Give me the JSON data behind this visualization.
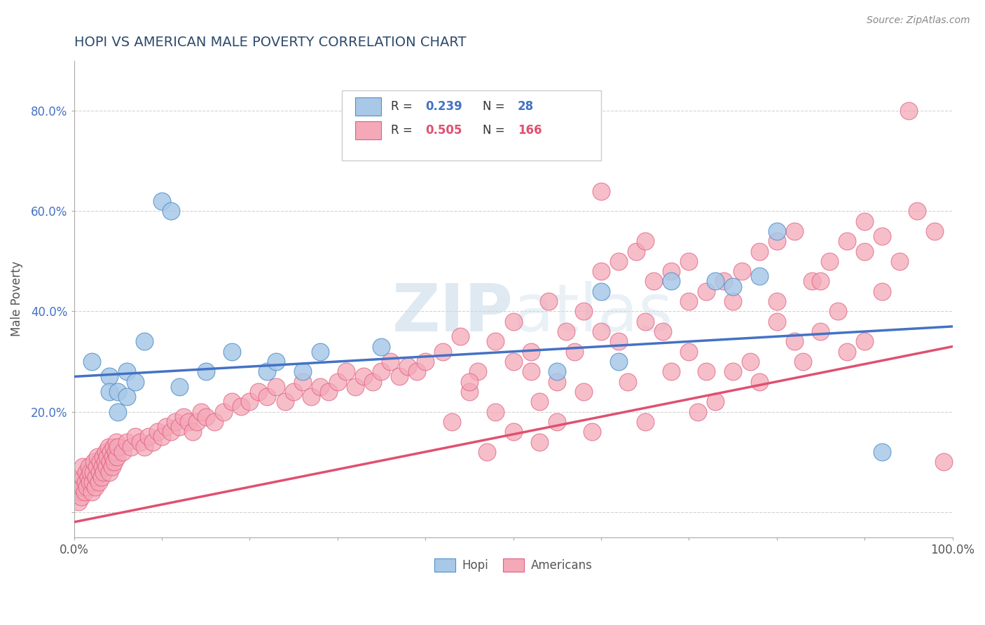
{
  "title": "HOPI VS AMERICAN MALE POVERTY CORRELATION CHART",
  "source": "Source: ZipAtlas.com",
  "ylabel": "Male Poverty",
  "xlim": [
    0.0,
    1.0
  ],
  "ylim": [
    -0.05,
    0.9
  ],
  "hopi_R": 0.239,
  "hopi_N": 28,
  "americans_R": 0.505,
  "americans_N": 166,
  "hopi_color": "#a8c8e8",
  "americans_color": "#f4a8b8",
  "hopi_edge_color": "#5090c8",
  "americans_edge_color": "#e06080",
  "hopi_line_color": "#4472C4",
  "americans_line_color": "#e05070",
  "legend_label_hopi": "Hopi",
  "legend_label_americans": "Americans",
  "title_color": "#2d4a6b",
  "source_color": "#888888",
  "hopi_x": [
    0.02,
    0.04,
    0.04,
    0.05,
    0.05,
    0.06,
    0.06,
    0.07,
    0.08,
    0.1,
    0.11,
    0.12,
    0.15,
    0.18,
    0.22,
    0.23,
    0.26,
    0.28,
    0.35,
    0.55,
    0.6,
    0.62,
    0.68,
    0.73,
    0.75,
    0.78,
    0.8,
    0.92
  ],
  "hopi_y": [
    0.3,
    0.27,
    0.24,
    0.2,
    0.24,
    0.28,
    0.23,
    0.26,
    0.34,
    0.62,
    0.6,
    0.25,
    0.28,
    0.32,
    0.28,
    0.3,
    0.28,
    0.32,
    0.33,
    0.28,
    0.44,
    0.3,
    0.46,
    0.46,
    0.45,
    0.47,
    0.56,
    0.12
  ],
  "am_cluster1_x": [
    0.005,
    0.006,
    0.007,
    0.008,
    0.009,
    0.01,
    0.01,
    0.012,
    0.013,
    0.014,
    0.015,
    0.016,
    0.017,
    0.018,
    0.019,
    0.02,
    0.021,
    0.022,
    0.023,
    0.024,
    0.025,
    0.026,
    0.027,
    0.028,
    0.029,
    0.03,
    0.031,
    0.032,
    0.033,
    0.034,
    0.035,
    0.036,
    0.037,
    0.038,
    0.039,
    0.04,
    0.041,
    0.042,
    0.043,
    0.044,
    0.045,
    0.046,
    0.047,
    0.048,
    0.049,
    0.05,
    0.055,
    0.06,
    0.065,
    0.07,
    0.075,
    0.08,
    0.085,
    0.09,
    0.095,
    0.1,
    0.105,
    0.11,
    0.115,
    0.12,
    0.125,
    0.13,
    0.135,
    0.14,
    0.145,
    0.15,
    0.16,
    0.17,
    0.18,
    0.19,
    0.2,
    0.21,
    0.22,
    0.23,
    0.24,
    0.25,
    0.26,
    0.27,
    0.28,
    0.29,
    0.3,
    0.31,
    0.32,
    0.33,
    0.34,
    0.35,
    0.36,
    0.37,
    0.38,
    0.39
  ],
  "am_cluster1_y": [
    0.02,
    0.04,
    0.06,
    0.03,
    0.05,
    0.07,
    0.09,
    0.04,
    0.06,
    0.08,
    0.05,
    0.07,
    0.09,
    0.06,
    0.08,
    0.04,
    0.06,
    0.08,
    0.1,
    0.05,
    0.07,
    0.09,
    0.11,
    0.06,
    0.08,
    0.1,
    0.07,
    0.09,
    0.11,
    0.08,
    0.1,
    0.12,
    0.09,
    0.11,
    0.13,
    0.08,
    0.1,
    0.12,
    0.09,
    0.11,
    0.13,
    0.1,
    0.12,
    0.14,
    0.11,
    0.13,
    0.12,
    0.14,
    0.13,
    0.15,
    0.14,
    0.13,
    0.15,
    0.14,
    0.16,
    0.15,
    0.17,
    0.16,
    0.18,
    0.17,
    0.19,
    0.18,
    0.16,
    0.18,
    0.2,
    0.19,
    0.18,
    0.2,
    0.22,
    0.21,
    0.22,
    0.24,
    0.23,
    0.25,
    0.22,
    0.24,
    0.26,
    0.23,
    0.25,
    0.24,
    0.26,
    0.28,
    0.25,
    0.27,
    0.26,
    0.28,
    0.3,
    0.27,
    0.29,
    0.28
  ],
  "am_cluster2_x": [
    0.4,
    0.42,
    0.44,
    0.46,
    0.48,
    0.5,
    0.52,
    0.54,
    0.56,
    0.58,
    0.6,
    0.62,
    0.64,
    0.66,
    0.68,
    0.7,
    0.72,
    0.74,
    0.76,
    0.78,
    0.8,
    0.82,
    0.84,
    0.86,
    0.88,
    0.9,
    0.92,
    0.94,
    0.96,
    0.98,
    0.45,
    0.5,
    0.55,
    0.6,
    0.65,
    0.7,
    0.75,
    0.8,
    0.85,
    0.9,
    0.45,
    0.52,
    0.57,
    0.62,
    0.67,
    0.72,
    0.77,
    0.82,
    0.87,
    0.92,
    0.43,
    0.48,
    0.53,
    0.58,
    0.63,
    0.68,
    0.73,
    0.78,
    0.83,
    0.88,
    0.5,
    0.55,
    0.6,
    0.65,
    0.7,
    0.75,
    0.8,
    0.85,
    0.9,
    0.95,
    0.47,
    0.53,
    0.59,
    0.65,
    0.71,
    0.99
  ],
  "am_cluster2_y": [
    0.3,
    0.32,
    0.35,
    0.28,
    0.34,
    0.38,
    0.32,
    0.42,
    0.36,
    0.4,
    0.48,
    0.5,
    0.52,
    0.46,
    0.48,
    0.5,
    0.44,
    0.46,
    0.48,
    0.52,
    0.54,
    0.56,
    0.46,
    0.5,
    0.54,
    0.58,
    0.55,
    0.5,
    0.6,
    0.56,
    0.24,
    0.3,
    0.26,
    0.36,
    0.38,
    0.32,
    0.28,
    0.42,
    0.46,
    0.52,
    0.26,
    0.28,
    0.32,
    0.34,
    0.36,
    0.28,
    0.3,
    0.34,
    0.4,
    0.44,
    0.18,
    0.2,
    0.22,
    0.24,
    0.26,
    0.28,
    0.22,
    0.26,
    0.3,
    0.32,
    0.16,
    0.18,
    0.64,
    0.54,
    0.42,
    0.42,
    0.38,
    0.36,
    0.34,
    0.8,
    0.12,
    0.14,
    0.16,
    0.18,
    0.2,
    0.1
  ]
}
